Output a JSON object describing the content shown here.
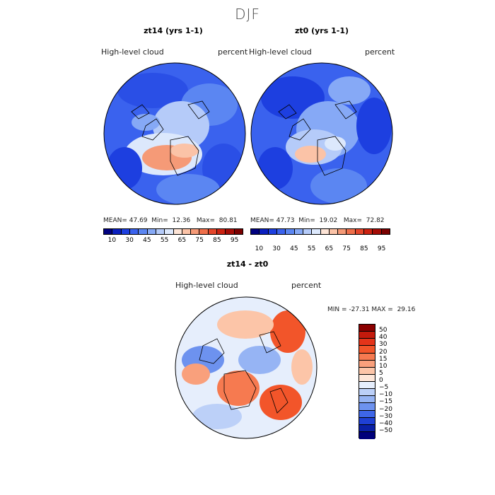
{
  "suptitle": "DJF",
  "panels": [
    {
      "title": "zt14 (yrs 1-1)",
      "var_label": "High-level cloud",
      "units": "percent",
      "mean_label": "MEAN=",
      "mean": "47.69",
      "min_label": "Min=",
      "min": "12.36",
      "max_label": "Max=",
      "max": "80.81"
    },
    {
      "title": "zt0 (yrs 1-1)",
      "var_label": "High-level cloud",
      "units": "percent",
      "mean_label": "MEAN=",
      "mean": "47.73",
      "min_label": "Min=",
      "min": "19.02",
      "max_label": "Max=",
      "max": "72.82"
    }
  ],
  "colorbar_top": {
    "tick_labels": [
      "10",
      "30",
      "45",
      "55",
      "65",
      "75",
      "85",
      "95"
    ],
    "colors": [
      "#00007f",
      "#0a1fbf",
      "#1d3fe0",
      "#3a62ee",
      "#5b86f2",
      "#86a9f6",
      "#b5cbf9",
      "#dce8fc",
      "#fde4d6",
      "#fbc3a7",
      "#f59a77",
      "#ef6f4a",
      "#e4452a",
      "#cc2211",
      "#a50c06",
      "#7a0000"
    ]
  },
  "diff": {
    "title": "zt14 - zt0",
    "var_label": "High-level cloud",
    "units": "percent",
    "min_label": "MIN =",
    "min": "-27.31",
    "max_label": "MAX =",
    "max": "29.16",
    "levels": [
      "50",
      "40",
      "30",
      "20",
      "15",
      "10",
      "5",
      "0",
      "−5",
      "−10",
      "−15",
      "−20",
      "−30",
      "−40",
      "−50"
    ],
    "colors": [
      "#8b0000",
      "#c41a0c",
      "#e4341a",
      "#f2552a",
      "#f67a50",
      "#f9a07c",
      "#fcc5a8",
      "#fde6d8",
      "#e6eefc",
      "#bcd0f8",
      "#96b4f4",
      "#6d92ef",
      "#3e66e8",
      "#1f40d4",
      "#0a20a6",
      "#00007a"
    ]
  },
  "chart_data": {
    "type": "map",
    "title": "DJF",
    "variable": "High-level cloud",
    "units": "percent",
    "panels": [
      {
        "name": "zt14 (yrs 1-1)",
        "mean": 47.69,
        "min": 12.36,
        "max": 80.81
      },
      {
        "name": "zt0 (yrs 1-1)",
        "mean": 47.73,
        "min": 19.02,
        "max": 72.82
      },
      {
        "name": "zt14 - zt0",
        "min": -27.31,
        "max": 29.16
      }
    ],
    "colorbar_levels_abs": [
      10,
      30,
      45,
      55,
      65,
      75,
      85,
      95
    ],
    "colorbar_levels_diff": [
      50,
      40,
      30,
      20,
      15,
      10,
      5,
      0,
      -5,
      -10,
      -15,
      -20,
      -30,
      -40,
      -50
    ]
  }
}
